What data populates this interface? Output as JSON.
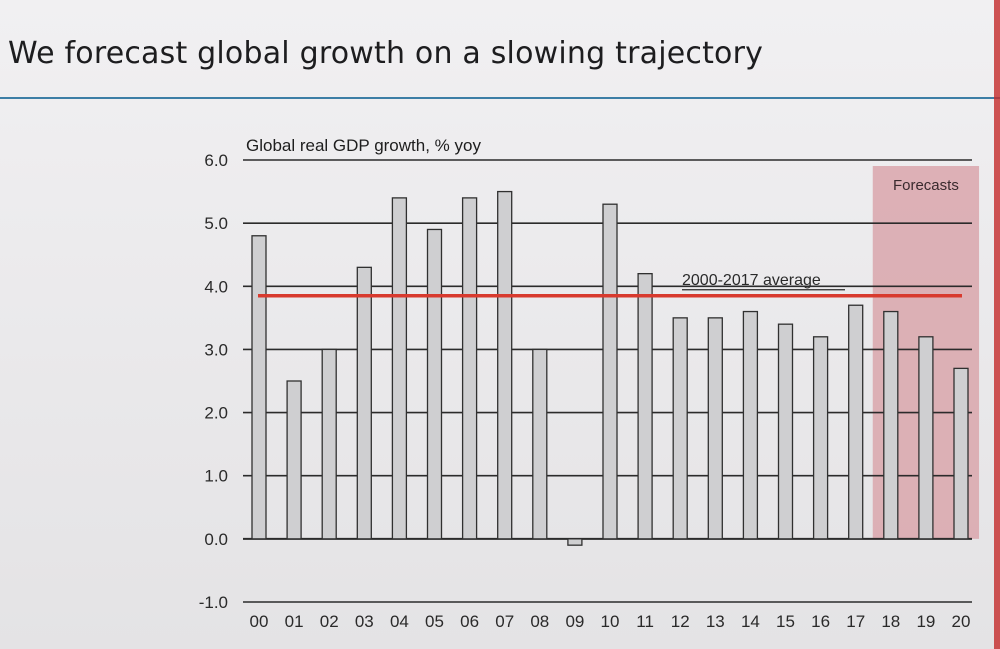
{
  "slide": {
    "title": "We forecast global growth on a slowing trajectory",
    "colors": {
      "rule": "#3c7ea6",
      "edge_accent": "#c42a2a"
    }
  },
  "chart_data": {
    "type": "bar",
    "title": "",
    "ylabel": "Global real GDP growth, % yoy",
    "xlabel": "",
    "ylim": [
      -1.0,
      6.0
    ],
    "yticks": [
      "-1.0",
      "0.0",
      "1.0",
      "2.0",
      "3.0",
      "4.0",
      "5.0",
      "6.0"
    ],
    "categories": [
      "00",
      "01",
      "02",
      "03",
      "04",
      "05",
      "06",
      "07",
      "08",
      "09",
      "10",
      "11",
      "12",
      "13",
      "14",
      "15",
      "16",
      "17",
      "18",
      "19",
      "20"
    ],
    "values": [
      4.8,
      2.5,
      3.0,
      4.3,
      5.4,
      4.9,
      5.4,
      5.5,
      3.0,
      -0.1,
      5.3,
      4.2,
      3.5,
      3.5,
      3.6,
      3.4,
      3.2,
      3.7,
      3.6,
      3.2,
      2.7
    ],
    "grid": true,
    "reference_line": {
      "label": "2000-2017 average",
      "value": 3.85,
      "color": "#d83a2e"
    },
    "forecast_region": {
      "label": "Forecasts",
      "categories": [
        "18",
        "19",
        "20"
      ],
      "color": "#d9a6ac"
    },
    "bar_color": "#cfcfd1"
  }
}
